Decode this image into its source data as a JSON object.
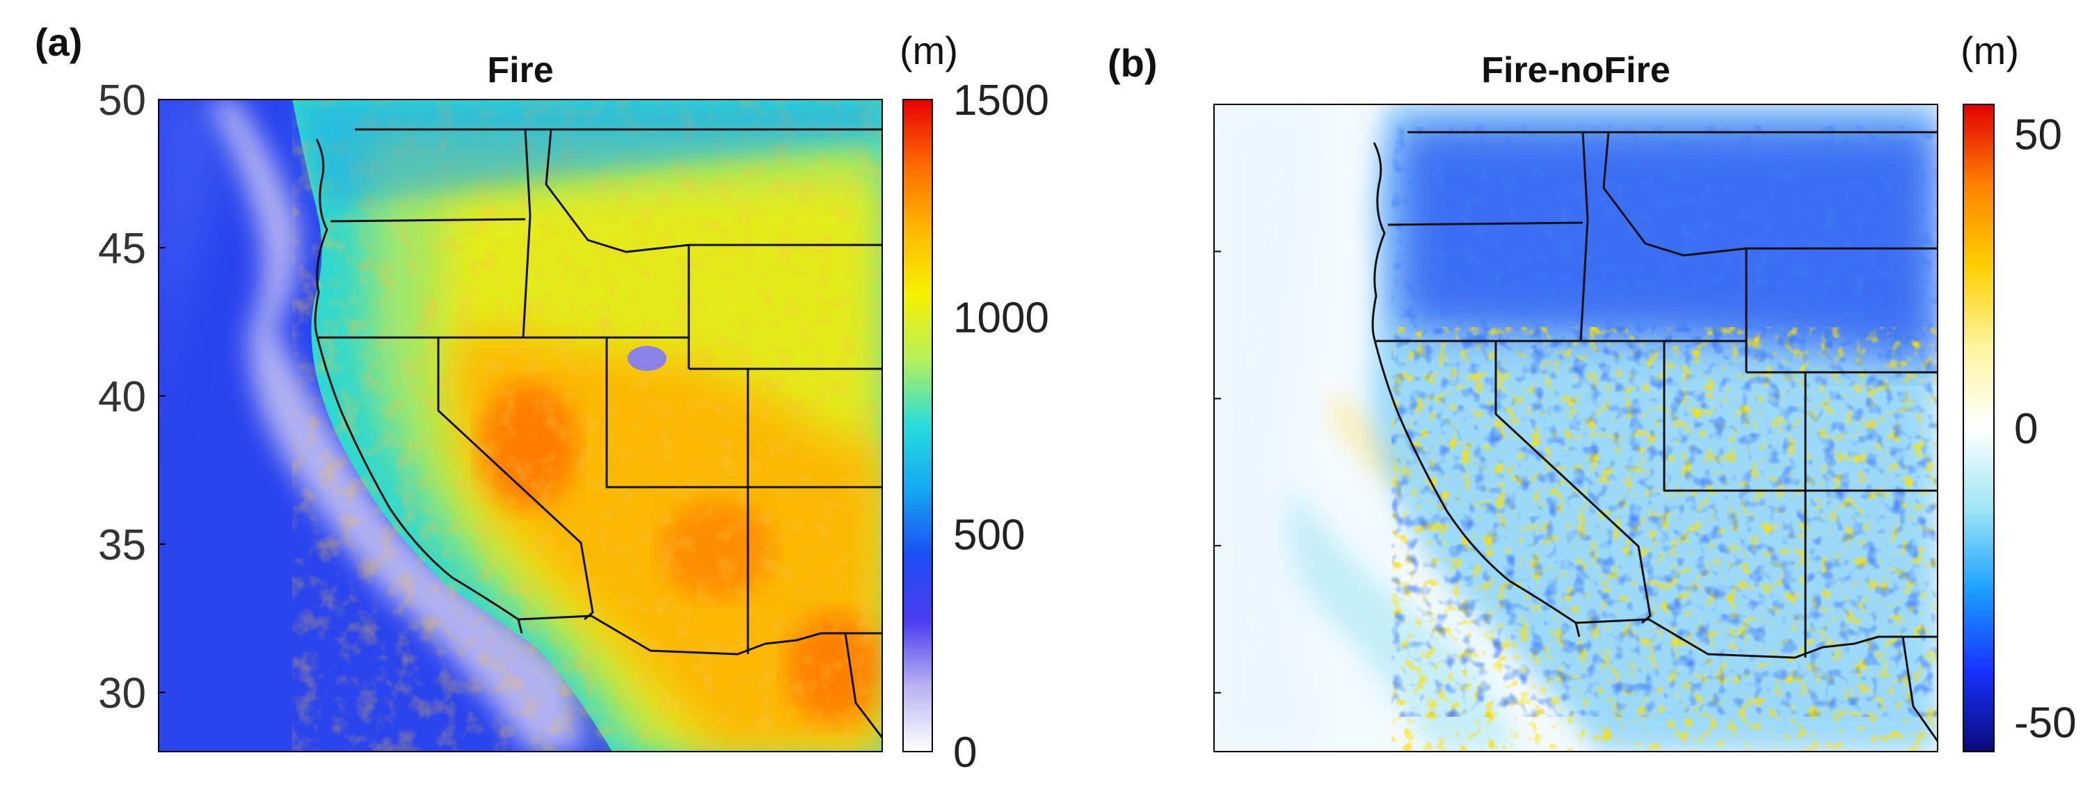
{
  "chart_data": [
    {
      "type": "heatmap",
      "panel_label": "(a)",
      "title": "Fire",
      "units": "(m)",
      "ylim": [
        28,
        50
      ],
      "y_ticks": [
        "50",
        "45",
        "40",
        "35",
        "30"
      ],
      "colorbar": {
        "range": [
          0,
          1500
        ],
        "ticks": [
          "1500",
          "1000",
          "500",
          "0"
        ],
        "colors": [
          "#ffffff",
          "#b9b2f2",
          "#4b3df0",
          "#1c4df5",
          "#14a6f2",
          "#27dcdc",
          "#b4f05a",
          "#f6f200",
          "#ffb800",
          "#ff6a00",
          "#e80000"
        ]
      }
    },
    {
      "type": "heatmap",
      "panel_label": "(b)",
      "title": "Fire-noFire",
      "units": "(m)",
      "ylim": [
        28,
        50
      ],
      "colorbar": {
        "range": [
          -55,
          55
        ],
        "ticks": [
          "50",
          "0",
          "-50"
        ],
        "colors": [
          "#0a0a7a",
          "#1732ff",
          "#1aa0ff",
          "#9ee6f5",
          "#ffffff",
          "#fff5a0",
          "#ffd000",
          "#ff8200",
          "#e20000"
        ]
      }
    }
  ]
}
